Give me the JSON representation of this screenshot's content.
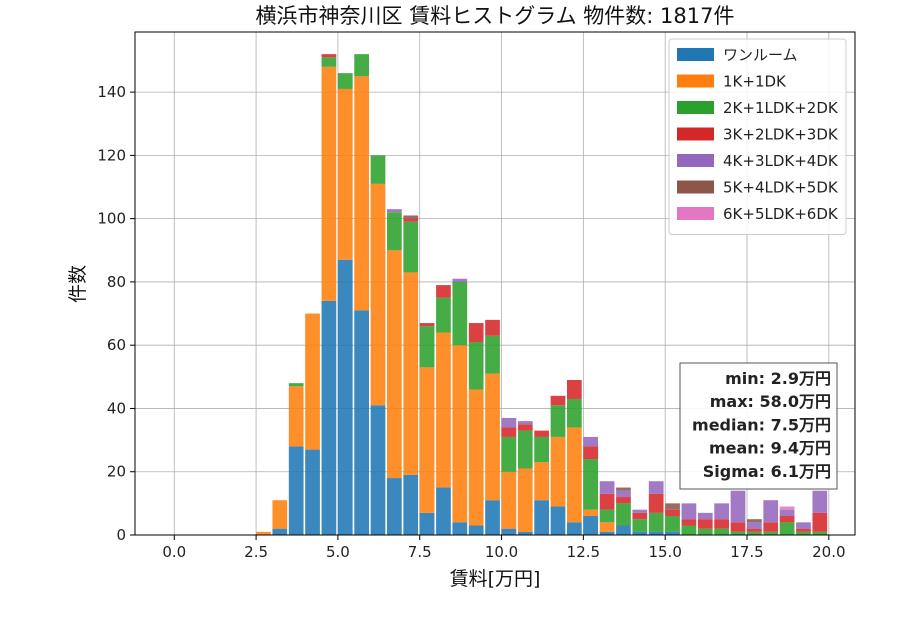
{
  "chart_data": {
    "type": "bar",
    "stacked": true,
    "title": "横浜市神奈川区 賃料ヒストグラム 物件数: 1817件",
    "xlabel": "賃料[万円]",
    "ylabel": "件数",
    "xlim": [
      -1.2,
      20.8
    ],
    "ylim": [
      0,
      159
    ],
    "xticks": [
      "0.0",
      "2.5",
      "5.0",
      "7.5",
      "10.0",
      "12.5",
      "15.0",
      "17.5",
      "20.0"
    ],
    "yticks": [
      "0",
      "20",
      "40",
      "60",
      "80",
      "100",
      "120",
      "140"
    ],
    "grid": true,
    "legend_position": "top-right",
    "bin_start": 0.0,
    "bin_width": 0.5,
    "series": [
      {
        "name": "ワンルーム",
        "color": "#1f77b4",
        "values": [
          0,
          0,
          0,
          0,
          0,
          0,
          2,
          28,
          27,
          74,
          87,
          71,
          41,
          18,
          19,
          7,
          15,
          4,
          3,
          11,
          2,
          1,
          11,
          9,
          4,
          6,
          1,
          3,
          1,
          1,
          1,
          0,
          0,
          0,
          0,
          0,
          0,
          0,
          0,
          0
        ]
      },
      {
        "name": "1K+1DK",
        "color": "#ff7f0e",
        "values": [
          0,
          0,
          0,
          0,
          0,
          1,
          9,
          19,
          43,
          74,
          54,
          74,
          70,
          72,
          64,
          46,
          49,
          56,
          43,
          40,
          18,
          20,
          12,
          22,
          30,
          2,
          3,
          0,
          0,
          0,
          0,
          0,
          0,
          0,
          0,
          0,
          0,
          0,
          0,
          0
        ]
      },
      {
        "name": "2K+1LDK+2DK",
        "color": "#2ca02c",
        "values": [
          0,
          0,
          0,
          0,
          0,
          0,
          0,
          1,
          0,
          3,
          5,
          7,
          9,
          12,
          16,
          13,
          11,
          20,
          15,
          12,
          11,
          12,
          8,
          10,
          9,
          16,
          4,
          7,
          4,
          6,
          5,
          3,
          2,
          2,
          1,
          1,
          1,
          4,
          1,
          1
        ]
      },
      {
        "name": "3K+2LDK+3DK",
        "color": "#d62728",
        "values": [
          0,
          0,
          0,
          0,
          0,
          0,
          0,
          0,
          0,
          1,
          0,
          0,
          0,
          0,
          1,
          1,
          4,
          0,
          6,
          5,
          3,
          2,
          2,
          3,
          6,
          4,
          5,
          2,
          2,
          6,
          2,
          2,
          3,
          3,
          3,
          1,
          3,
          2,
          1,
          6
        ]
      },
      {
        "name": "4K+3LDK+4DK",
        "color": "#9467bd",
        "values": [
          0,
          0,
          0,
          0,
          0,
          0,
          0,
          0,
          0,
          0,
          0,
          0,
          0,
          1,
          0,
          0,
          0,
          1,
          0,
          0,
          3,
          1,
          0,
          0,
          0,
          3,
          4,
          2,
          1,
          4,
          0,
          5,
          2,
          5,
          10,
          2,
          7,
          2,
          2,
          7
        ]
      },
      {
        "name": "5K+4LDK+5DK",
        "color": "#8c564b",
        "values": [
          0,
          0,
          0,
          0,
          0,
          0,
          0,
          0,
          0,
          0,
          0,
          0,
          0,
          0,
          1,
          0,
          0,
          0,
          0,
          0,
          0,
          0,
          0,
          0,
          0,
          0,
          0,
          1,
          0,
          0,
          2,
          0,
          0,
          0,
          0,
          1,
          0,
          0,
          0,
          0
        ]
      },
      {
        "name": "6K+5LDK+6DK",
        "color": "#e377c2",
        "values": [
          0,
          0,
          0,
          0,
          0,
          0,
          0,
          0,
          0,
          0,
          0,
          0,
          0,
          0,
          0,
          0,
          0,
          0,
          0,
          0,
          0,
          0,
          0,
          0,
          0,
          0,
          0,
          0,
          0,
          0,
          0,
          0,
          0,
          0,
          0,
          0,
          0,
          1,
          0,
          0
        ]
      }
    ],
    "stats_box": {
      "position": "right-middle",
      "lines": [
        "min: 2.9万円",
        "max: 58.0万円",
        "median: 7.5万円",
        "mean: 9.4万円",
        "Sigma: 6.1万円"
      ]
    }
  }
}
